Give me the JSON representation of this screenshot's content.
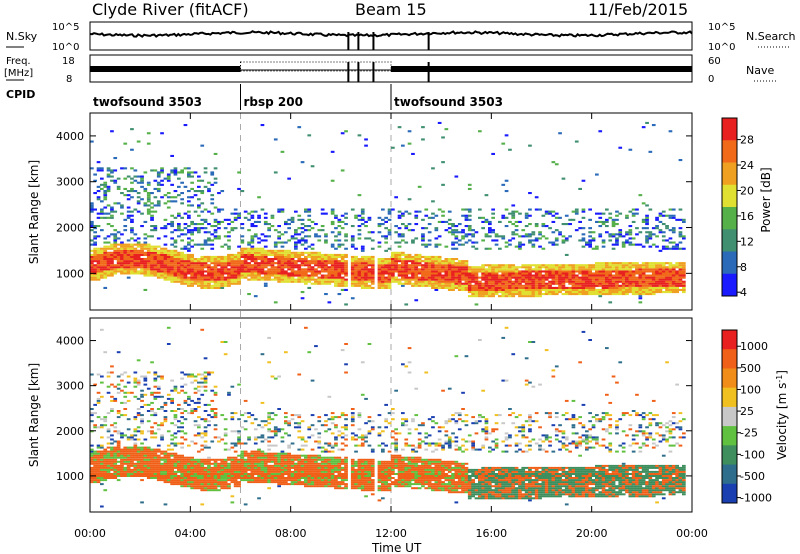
{
  "header": {
    "station": "Clyde River (fitACF)",
    "beam": "Beam 15",
    "date": "11/Feb/2015"
  },
  "noise_panel": {
    "left_label": "N.Sky",
    "right_label": "N.Search",
    "left_ticks": [
      "10^5",
      "10^0"
    ],
    "right_ticks": [
      "10^5",
      "10^0"
    ]
  },
  "freq_panel": {
    "left_label_1": "Freq.",
    "left_label_2": "[MHz]",
    "left_ticks": [
      "18",
      "8"
    ],
    "right_label": "Nave",
    "right_ticks": [
      "60",
      "0"
    ]
  },
  "cpid": {
    "label": "CPID",
    "segments": [
      {
        "name": "twofsound 3503",
        "start_hour": 0
      },
      {
        "name": "rbsp 200",
        "start_hour": 6
      },
      {
        "name": "twofsound 3503",
        "start_hour": 12
      }
    ]
  },
  "colors": {
    "power_scale": [
      "#1a1aff",
      "#2a6ab8",
      "#3f8f70",
      "#56b04a",
      "#e0e032",
      "#f0a020",
      "#f06a1a",
      "#e82020"
    ],
    "velocity_scale": [
      "#1a3fb0",
      "#2e6e8c",
      "#3e8e5e",
      "#60c040",
      "#c8c8c8",
      "#f0c020",
      "#f08c18",
      "#f06018",
      "#e82020"
    ]
  },
  "chart_data": [
    {
      "type": "heatmap",
      "title": "Power",
      "ylabel": "Slant Range [km]",
      "ylim": [
        200,
        4500
      ],
      "yticks": [
        "1000",
        "2000",
        "3000",
        "4000"
      ],
      "colorbar_label": "Power [dB]",
      "colorbar_ticks": [
        "28",
        "24",
        "20",
        "16",
        "12",
        "8",
        "4"
      ],
      "colorbar_range": [
        0,
        32
      ]
    },
    {
      "type": "heatmap",
      "title": "Velocity",
      "ylabel": "Slant Range [km]",
      "ylim": [
        200,
        4500
      ],
      "yticks": [
        "1000",
        "2000",
        "3000",
        "4000"
      ],
      "colorbar_label": "Velocity [m s^-1]",
      "colorbar_ticks": [
        "1000",
        "500",
        "100",
        "25",
        "-25",
        "-100",
        "-500",
        "-1000"
      ]
    }
  ],
  "x_axis": {
    "label": "Time UT",
    "ticks": [
      "00:00",
      "04:00",
      "08:00",
      "12:00",
      "16:00",
      "20:00",
      "00:00"
    ],
    "range_hours": [
      0,
      24
    ]
  }
}
